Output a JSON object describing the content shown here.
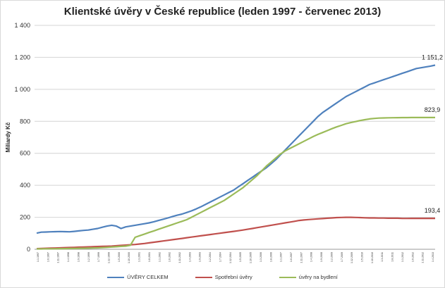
{
  "chart_data": {
    "type": "line",
    "title": "Klientské úvěry v České republice (leden 1997 - červenec 2013)",
    "ylabel": "Miliardy Kč",
    "xlabel": "",
    "ylim": [
      0,
      1400
    ],
    "yticks": [
      "0",
      "200",
      "400",
      "600",
      "800",
      "1 000",
      "1 200",
      "1 400"
    ],
    "grid": true,
    "legend_position": "bottom",
    "x_tick_labels": [
      "1.1.1997",
      "1.6.1997",
      "1.11.1997",
      "1.4.1998",
      "1.9.1998",
      "1.2.1999",
      "1.7.1999",
      "1.12.1999",
      "1.5.2000",
      "1.10.2000",
      "1.3.2001",
      "1.8.2001",
      "1.1.2002",
      "1.6.2002",
      "1.11.2002",
      "1.4.2003",
      "1.9.2003",
      "1.2.2004",
      "1.7.2004",
      "1.12.2004",
      "1.5.2005",
      "1.10.2005",
      "1.3.2006",
      "1.8.2006",
      "1.1.2007",
      "1.6.2007",
      "1.11.2007",
      "1.4.2008",
      "1.9.2008",
      "1.2.2009",
      "1.7.2009",
      "1.12.2009",
      "1.5.2010",
      "1.10.2010",
      "1.3.2011",
      "1.8.2011",
      "1.1.2012",
      "1.6.2012",
      "1.11.2012",
      "1.4.2013"
    ],
    "series": [
      {
        "name": "ÚVĚRY CELKEM",
        "color": "#4f81bd",
        "values": [
          101,
          107,
          108,
          109,
          110,
          111,
          110,
          109,
          112,
          115,
          118,
          120,
          125,
          130,
          138,
          145,
          150,
          145,
          130,
          140,
          145,
          150,
          155,
          160,
          165,
          172,
          180,
          188,
          196,
          205,
          213,
          220,
          230,
          240,
          252,
          265,
          280,
          295,
          310,
          325,
          340,
          355,
          370,
          390,
          410,
          430,
          450,
          470,
          490,
          510,
          535,
          560,
          590,
          620,
          650,
          680,
          710,
          740,
          770,
          800,
          830,
          855,
          875,
          895,
          915,
          935,
          955,
          970,
          985,
          1000,
          1015,
          1030,
          1040,
          1050,
          1060,
          1070,
          1080,
          1090,
          1100,
          1110,
          1120,
          1130,
          1135,
          1140,
          1145,
          1151.2
        ],
        "end_label": "1 151,2"
      },
      {
        "name": "Spotřební úvěry",
        "color": "#c0504d",
        "values": [
          4,
          5,
          6,
          7,
          8,
          9,
          10,
          11,
          12,
          13,
          14,
          15,
          16,
          17,
          18,
          19,
          20,
          22,
          24,
          26,
          28,
          30,
          33,
          36,
          40,
          44,
          48,
          52,
          56,
          60,
          64,
          68,
          72,
          76,
          80,
          84,
          88,
          92,
          96,
          100,
          104,
          108,
          112,
          116,
          120,
          125,
          130,
          135,
          140,
          145,
          150,
          155,
          160,
          165,
          170,
          175,
          180,
          183,
          186,
          188,
          190,
          192,
          194,
          196,
          198,
          199,
          200,
          200,
          199,
          198,
          197,
          196,
          196,
          195,
          195,
          194,
          194,
          194,
          193,
          193,
          193.4,
          193.4,
          193.4,
          193.4,
          193.4,
          193.4
        ]
      },
      {
        "name": "úvěry na bydlení",
        "color": "#9bbb59",
        "values": [
          2,
          2,
          3,
          3,
          3,
          4,
          4,
          5,
          5,
          6,
          6,
          7,
          8,
          9,
          10,
          12,
          14,
          16,
          18,
          20,
          25,
          75,
          85,
          95,
          105,
          115,
          125,
          135,
          145,
          155,
          165,
          175,
          185,
          200,
          215,
          230,
          245,
          260,
          275,
          290,
          305,
          325,
          345,
          365,
          385,
          410,
          435,
          460,
          490,
          520,
          545,
          570,
          595,
          615,
          630,
          645,
          660,
          675,
          690,
          705,
          718,
          730,
          742,
          754,
          765,
          775,
          785,
          792,
          798,
          805,
          810,
          815,
          818,
          820,
          821,
          822,
          822.5,
          823,
          823.2,
          823.4,
          823.6,
          823.7,
          823.8,
          823.8,
          823.9,
          823.9
        ],
        "end_label": "823,9"
      }
    ]
  }
}
